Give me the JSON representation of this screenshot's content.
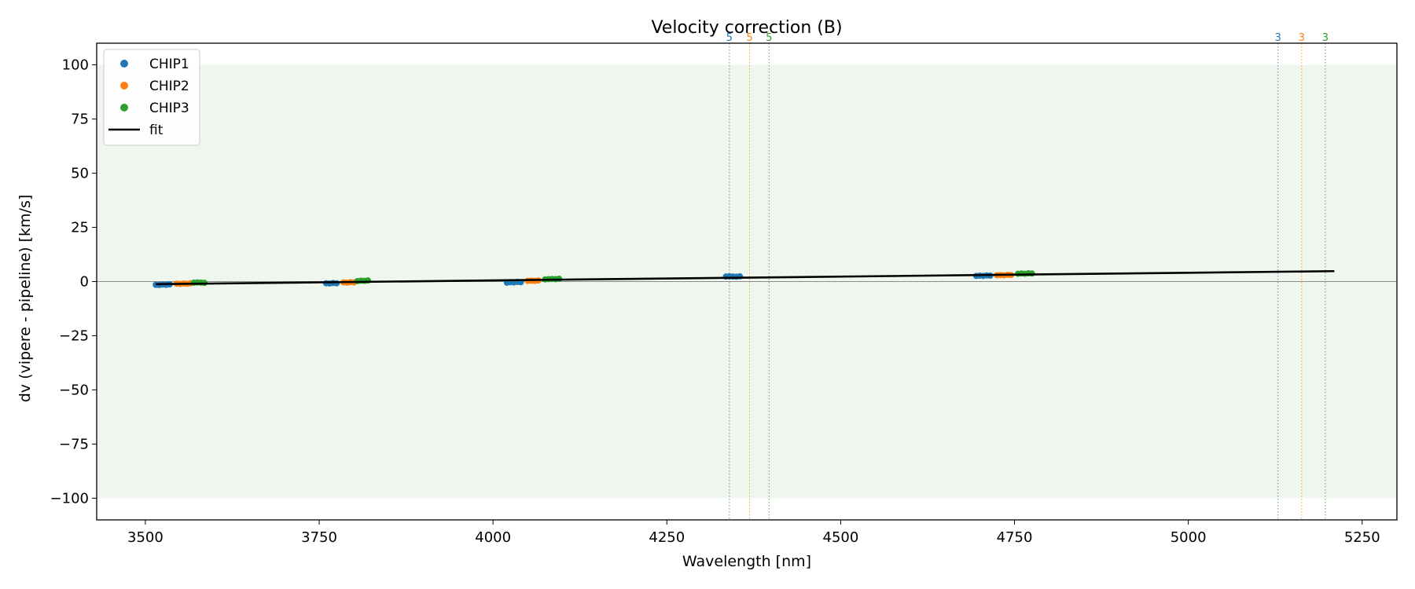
{
  "chart_data": {
    "type": "scatter",
    "title": "Velocity correction (B)",
    "xlabel": "Wavelength [nm]",
    "ylabel": "dv (vipere - pipeline) [km/s]",
    "xlim": [
      3430,
      5300
    ],
    "ylim": [
      -110,
      110
    ],
    "xticks": [
      3500,
      3750,
      4000,
      4250,
      4500,
      4750,
      5000,
      5250
    ],
    "yticks": [
      -100,
      -75,
      -50,
      -25,
      0,
      25,
      50,
      75,
      100
    ],
    "shaded_band": [
      -100,
      100
    ],
    "shaded_color": "#eef6ee",
    "zero_line": 0,
    "colors": {
      "CHIP1": "#1f77b4",
      "CHIP2": "#ff7f0e",
      "CHIP3": "#2ca02c",
      "fit": "#000000"
    },
    "series": [
      {
        "name": "CHIP1",
        "x": [
          3515,
          3520,
          3525,
          3530,
          3535,
          3760,
          3765,
          3770,
          3775,
          4020,
          4025,
          4030,
          4035,
          4040,
          4335,
          4340,
          4345,
          4350,
          4355,
          4695,
          4700,
          4705,
          4710,
          4715
        ],
        "y": [
          -1.5,
          -1.6,
          -1.4,
          -1.5,
          -1.3,
          -0.8,
          -0.9,
          -0.7,
          -0.8,
          -0.5,
          -0.3,
          -0.4,
          -0.2,
          -0.3,
          2.3,
          2.4,
          2.3,
          2.2,
          2.4,
          2.6,
          2.7,
          2.6,
          2.8,
          2.7
        ]
      },
      {
        "name": "CHIP2",
        "x": [
          3545,
          3550,
          3555,
          3560,
          3565,
          3785,
          3790,
          3795,
          3800,
          4050,
          4055,
          4060,
          4065,
          4725,
          4730,
          4735,
          4740,
          4745
        ],
        "y": [
          -1.0,
          -1.1,
          -0.9,
          -1.0,
          -0.8,
          -0.4,
          -0.5,
          -0.3,
          -0.4,
          0.3,
          0.4,
          0.3,
          0.5,
          2.9,
          3.0,
          2.9,
          3.1,
          3.0
        ]
      },
      {
        "name": "CHIP3",
        "x": [
          3570,
          3575,
          3580,
          3585,
          3805,
          3810,
          3815,
          3820,
          4075,
          4080,
          4085,
          4090,
          4095,
          4755,
          4760,
          4765,
          4770,
          4775
        ],
        "y": [
          -0.5,
          -0.4,
          -0.5,
          -0.6,
          0.2,
          0.4,
          0.3,
          0.5,
          1.0,
          1.1,
          1.2,
          1.1,
          1.3,
          3.6,
          3.7,
          3.6,
          3.8,
          3.7
        ]
      }
    ],
    "fit": {
      "name": "fit",
      "x": [
        3515,
        5210
      ],
      "y": [
        -1.2,
        4.8
      ]
    },
    "vlines": [
      {
        "x": 4340,
        "label": "5",
        "color": "#1f77b4"
      },
      {
        "x": 4369,
        "label": "5",
        "color": "#ff7f0e"
      },
      {
        "x": 4397,
        "label": "5",
        "color": "#2ca02c"
      },
      {
        "x": 5129,
        "label": "3",
        "color": "#1f77b4"
      },
      {
        "x": 5163,
        "label": "3",
        "color": "#ff7f0e"
      },
      {
        "x": 5197,
        "label": "3",
        "color": "#2ca02c"
      }
    ],
    "legend": {
      "position": "top-left",
      "entries": [
        {
          "label": "CHIP1",
          "kind": "marker",
          "color": "#1f77b4"
        },
        {
          "label": "CHIP2",
          "kind": "marker",
          "color": "#ff7f0e"
        },
        {
          "label": "CHIP3",
          "kind": "marker",
          "color": "#2ca02c"
        },
        {
          "label": "fit",
          "kind": "line",
          "color": "#000000"
        }
      ]
    }
  }
}
